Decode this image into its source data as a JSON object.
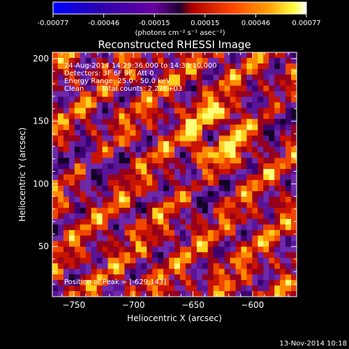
{
  "colorbar": {
    "tick_labels": [
      "-0.00077",
      "-0.00046",
      "-0.00015",
      "0.00015",
      "0.00046",
      "0.00077"
    ],
    "unit_label": "(photons cm⁻² s⁻¹ asec⁻²)",
    "range": [
      -0.00077,
      0.00077
    ],
    "palette": [
      "#0000ff",
      "#2a00b0",
      "#7a00a0",
      "#b00000",
      "#ff4000",
      "#ffa000",
      "#ffff40",
      "#ffffff"
    ]
  },
  "chart_data": {
    "type": "heatmap",
    "title": "Reconstructed RHESSI Image",
    "xlabel": "Heliocentric X (arcsec)",
    "ylabel": "Heliocentric Y (arcsec)",
    "xlim": [
      -768,
      -563
    ],
    "ylim": [
      10,
      205
    ],
    "x_ticks": [
      -750,
      -700,
      -650,
      -600
    ],
    "y_ticks": [
      50,
      100,
      150,
      200
    ],
    "grid": false,
    "annotations": {
      "time": "24-Aug-2014 14:29:36.000 to 14:33:10.000",
      "detectors": "Detectors: 3F 6F 9F, Att 0",
      "energy": "Energy Range: 25.0 - 50.0 keV",
      "method": "Clean",
      "counts": "Total counts: 2.27E+03",
      "peak": "Position of Peak = [-629,143]"
    },
    "peak": {
      "x": -629,
      "y": 143
    },
    "value_range": [
      -0.00077,
      0.00077
    ]
  },
  "footer": {
    "timestamp": "13-Nov-2014 10:18"
  }
}
